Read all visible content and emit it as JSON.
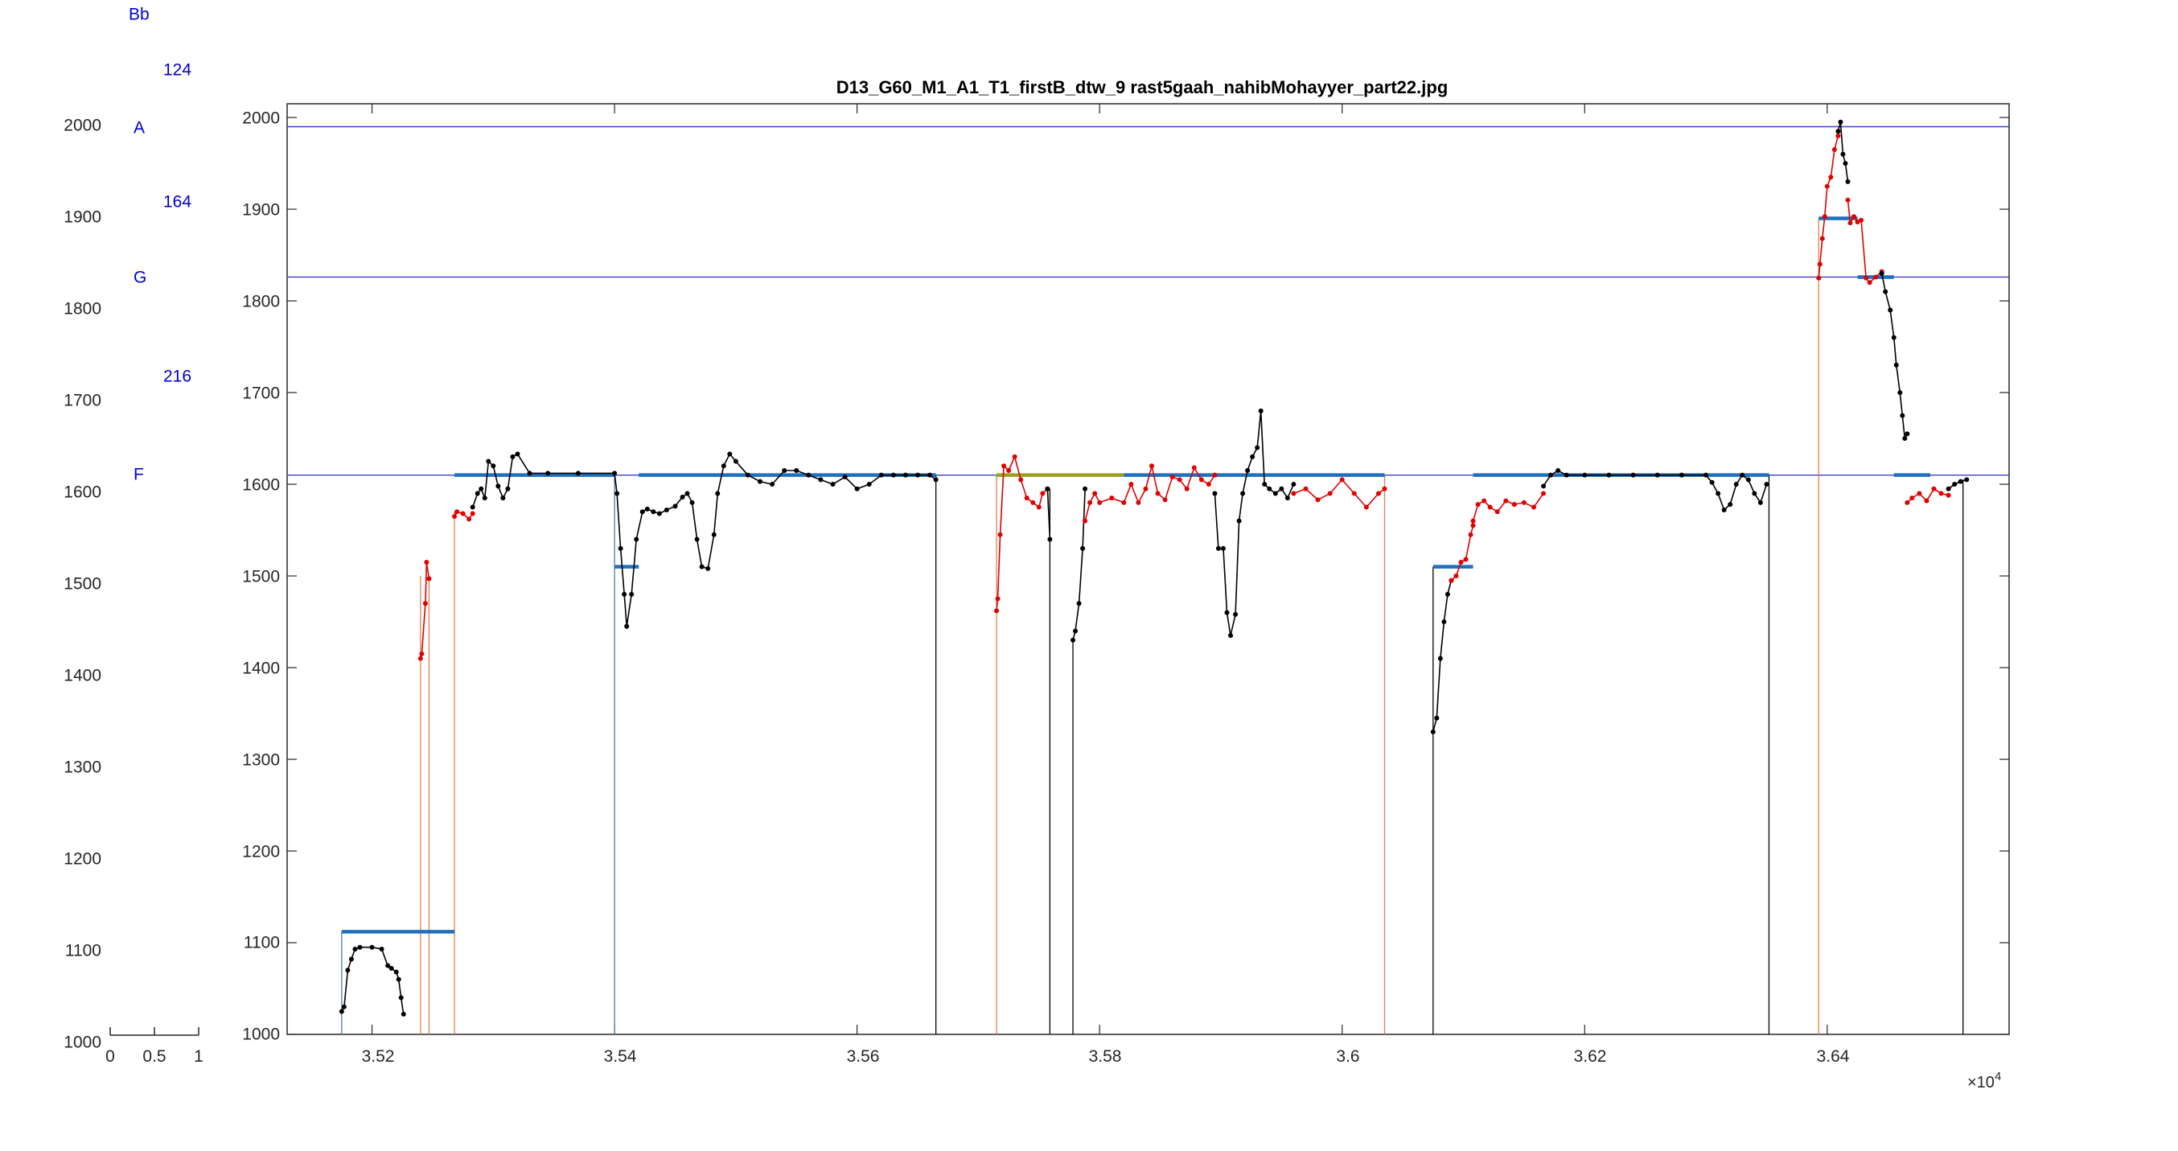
{
  "chart_data": [
    {
      "type": "line",
      "title": "",
      "xlim": [
        0,
        1
      ],
      "ylim": [
        1000,
        2000
      ],
      "xticks": [
        "0",
        "0.5",
        "1"
      ],
      "yticks": [
        "1000",
        "1100",
        "1200",
        "1300",
        "1400",
        "1500",
        "1600",
        "1700",
        "1800",
        "1900",
        "2000"
      ],
      "note_labels": [
        {
          "text": "Bb",
          "y": 2124
        },
        {
          "text": "124",
          "y": 2062
        },
        {
          "text": "A",
          "y": 1990
        },
        {
          "text": "164",
          "y": 1918
        },
        {
          "text": "G",
          "y": 1826
        },
        {
          "text": "216",
          "y": 1718
        },
        {
          "text": "F",
          "y": 1610
        }
      ]
    },
    {
      "type": "line",
      "title": "D13_G60_M1_A1_T1_firstB_dtw_9 rast5gaah_nahibMohayyer_part22.jpg",
      "xlim": [
        35130,
        36550
      ],
      "ylim": [
        1000,
        2015
      ],
      "xticks": [
        35200,
        35400,
        35600,
        35800,
        36000,
        36200,
        36400
      ],
      "xtick_labels": [
        "3.52",
        "3.54",
        "3.56",
        "3.58",
        "3.6",
        "3.62",
        "3.64"
      ],
      "x_exponent": "×10",
      "x_exponent_power": "4",
      "yticks": [
        "1000",
        "1100",
        "1200",
        "1300",
        "1400",
        "1500",
        "1600",
        "1700",
        "1800",
        "1900",
        "2000"
      ],
      "reference_lines": [
        1990,
        1826,
        1610
      ],
      "colors": {
        "reference": "#4040c0",
        "target": "#1f6fbf",
        "black": "#000000",
        "red": "#e00000",
        "olive": "#9aa020",
        "orange": "#e08050",
        "steel": "#4a7fa0"
      },
      "target_segments": [
        {
          "x": [
            35175,
            35268
          ],
          "y": 1112
        },
        {
          "x": [
            35268,
            35400
          ],
          "y": 1610
        },
        {
          "x": [
            35400,
            35420
          ],
          "y": 1510
        },
        {
          "x": [
            35420,
            35665
          ],
          "y": 1610
        },
        {
          "x": [
            35715,
            35820
          ],
          "y": 1610,
          "color": "olive"
        },
        {
          "x": [
            35820,
            36035
          ],
          "y": 1610
        },
        {
          "x": [
            36075,
            36108
          ],
          "y": 1510
        },
        {
          "x": [
            36108,
            36352
          ],
          "y": 1610
        },
        {
          "x": [
            36393,
            36425
          ],
          "y": 1890
        },
        {
          "x": [
            36425,
            36455
          ],
          "y": 1826
        },
        {
          "x": [
            36455,
            36485
          ],
          "y": 1610
        }
      ],
      "drop_lines": [
        {
          "x": 35175,
          "y": 1112,
          "color": "steel"
        },
        {
          "x": 35240,
          "y": 1500,
          "color": "orange"
        },
        {
          "x": 35247,
          "y": 1500,
          "color": "orange"
        },
        {
          "x": 35268,
          "y": 1570,
          "color": "orange"
        },
        {
          "x": 35400,
          "y": 1610,
          "color": "steel"
        },
        {
          "x": 35665,
          "y": 1610,
          "color": "black"
        },
        {
          "x": 35715,
          "y": 1610,
          "color": "orange"
        },
        {
          "x": 35759,
          "y": 1595,
          "color": "black"
        },
        {
          "x": 35778,
          "y": 1430,
          "color": "black"
        },
        {
          "x": 36035,
          "y": 1610,
          "color": "orange"
        },
        {
          "x": 36075,
          "y": 1510,
          "color": "black"
        },
        {
          "x": 36352,
          "y": 1610,
          "color": "black"
        },
        {
          "x": 36393,
          "y": 1890,
          "color": "orange"
        },
        {
          "x": 36512,
          "y": 1605,
          "color": "black"
        }
      ],
      "series": [
        {
          "color": "black",
          "x": [
            35175,
            35177,
            35180,
            35183,
            35186,
            35190,
            35200,
            35208,
            35213,
            35216,
            35220,
            35222,
            35224,
            35226
          ],
          "y": [
            1025,
            1030,
            1070,
            1082,
            1093,
            1095,
            1095,
            1093,
            1075,
            1072,
            1068,
            1060,
            1040,
            1022
          ]
        },
        {
          "color": "red",
          "x": [
            35240,
            35241,
            35244,
            35245,
            35247
          ],
          "y": [
            1410,
            1415,
            1470,
            1515,
            1497
          ]
        },
        {
          "color": "red",
          "x": [
            35268,
            35270,
            35275,
            35280,
            35283
          ],
          "y": [
            1565,
            1570,
            1568,
            1562,
            1568
          ]
        },
        {
          "color": "black",
          "x": [
            35283,
            35287,
            35290,
            35293,
            35296,
            35300,
            35304,
            35308,
            35312,
            35316,
            35320,
            35330,
            35345,
            35370,
            35400,
            35402,
            35405,
            35408,
            35410,
            35414,
            35418,
            35423,
            35427,
            35432,
            35437,
            35443,
            35450,
            35456,
            35460,
            35464,
            35468,
            35472,
            35477,
            35482,
            35485,
            35490,
            35495,
            35500,
            35510,
            35520,
            35530,
            35540,
            35550,
            35560,
            35570,
            35580,
            35590,
            35600,
            35610,
            35620,
            35630,
            35640,
            35650,
            35660,
            35665
          ],
          "y": [
            1575,
            1590,
            1595,
            1585,
            1625,
            1620,
            1598,
            1585,
            1595,
            1630,
            1633,
            1612,
            1612,
            1612,
            1612,
            1590,
            1530,
            1480,
            1445,
            1480,
            1540,
            1570,
            1573,
            1570,
            1568,
            1572,
            1576,
            1586,
            1590,
            1580,
            1540,
            1510,
            1508,
            1545,
            1590,
            1620,
            1633,
            1625,
            1610,
            1603,
            1600,
            1615,
            1615,
            1610,
            1605,
            1600,
            1608,
            1595,
            1600,
            1610,
            1610,
            1610,
            1610,
            1610,
            1605
          ]
        },
        {
          "color": "red",
          "x": [
            35715,
            35716,
            35718,
            35721,
            35725,
            35730,
            35735,
            35740,
            35745,
            35750,
            35753,
            35757
          ],
          "y": [
            1462,
            1475,
            1545,
            1620,
            1615,
            1630,
            1605,
            1585,
            1580,
            1575,
            1590,
            1595
          ]
        },
        {
          "color": "black",
          "x": [
            35757,
            35759
          ],
          "y": [
            1595,
            1540
          ]
        },
        {
          "color": "black",
          "x": [
            35778,
            35780,
            35783,
            35786,
            35788
          ],
          "y": [
            1430,
            1440,
            1470,
            1530,
            1595
          ]
        },
        {
          "color": "red",
          "x": [
            35788,
            35792,
            35796,
            35800,
            35810,
            35820,
            35826,
            35832,
            35838,
            35843,
            35848,
            35854,
            35860,
            35866,
            35872,
            35878,
            35884,
            35890,
            35895
          ],
          "y": [
            1560,
            1580,
            1590,
            1580,
            1585,
            1580,
            1600,
            1580,
            1595,
            1620,
            1590,
            1583,
            1608,
            1605,
            1595,
            1618,
            1605,
            1600,
            1610
          ]
        },
        {
          "color": "black",
          "x": [
            35895,
            35898,
            35902,
            35905,
            35908,
            35912,
            35915,
            35918,
            35922,
            35926,
            35930,
            35933,
            35936,
            35940,
            35945,
            35950,
            35955,
            35960
          ],
          "y": [
            1590,
            1530,
            1530,
            1460,
            1435,
            1458,
            1560,
            1590,
            1615,
            1630,
            1640,
            1680,
            1600,
            1595,
            1590,
            1595,
            1585,
            1600
          ]
        },
        {
          "color": "red",
          "x": [
            35960,
            35970,
            35980,
            35990,
            36000,
            36010,
            36020,
            36030,
            36035
          ],
          "y": [
            1590,
            1595,
            1583,
            1590,
            1605,
            1590,
            1575,
            1590,
            1595
          ]
        },
        {
          "color": "black",
          "x": [
            36075,
            36078,
            36081,
            36084,
            36087,
            36090
          ],
          "y": [
            1330,
            1345,
            1410,
            1450,
            1480,
            1495
          ]
        },
        {
          "color": "red",
          "x": [
            36090,
            36094,
            36098,
            36102,
            36106,
            36108
          ],
          "y": [
            1495,
            1500,
            1515,
            1518,
            1545,
            1555
          ]
        },
        {
          "color": "red",
          "x": [
            36108,
            36112,
            36117,
            36122,
            36128,
            36135,
            36142,
            36150,
            36158,
            36166
          ],
          "y": [
            1560,
            1578,
            1582,
            1575,
            1570,
            1582,
            1578,
            1580,
            1575,
            1590
          ]
        },
        {
          "color": "black",
          "x": [
            36166,
            36172,
            36178,
            36185,
            36200,
            36220,
            36240,
            36260,
            36280,
            36300,
            36305,
            36310,
            36315,
            36320,
            36325,
            36330,
            36335,
            36340,
            36345,
            36350
          ],
          "y": [
            1598,
            1610,
            1615,
            1610,
            1610,
            1610,
            1610,
            1610,
            1610,
            1610,
            1602,
            1590,
            1572,
            1578,
            1600,
            1610,
            1605,
            1590,
            1580,
            1600
          ]
        },
        {
          "color": "red",
          "x": [
            36393,
            36394,
            36396,
            36398,
            36400,
            36403,
            36406,
            36409
          ],
          "y": [
            1825,
            1840,
            1868,
            1892,
            1925,
            1935,
            1965,
            1980
          ]
        },
        {
          "color": "black",
          "x": [
            36409,
            36411,
            36413,
            36415,
            36417
          ],
          "y": [
            1985,
            1995,
            1960,
            1950,
            1930
          ]
        },
        {
          "color": "red",
          "x": [
            36417,
            36419,
            36422,
            36425,
            36428,
            36432,
            36435,
            36440,
            36445
          ],
          "y": [
            1910,
            1885,
            1892,
            1886,
            1888,
            1825,
            1820,
            1826,
            1832
          ]
        },
        {
          "color": "black",
          "x": [
            36445,
            36448,
            36452,
            36455,
            36457,
            36460,
            36462,
            36464,
            36466
          ],
          "y": [
            1830,
            1810,
            1790,
            1760,
            1730,
            1700,
            1675,
            1650,
            1655
          ]
        },
        {
          "color": "red",
          "x": [
            36466,
            36470,
            36476,
            36482,
            36488,
            36494,
            36500
          ],
          "y": [
            1580,
            1585,
            1590,
            1582,
            1595,
            1590,
            1588
          ]
        },
        {
          "color": "black",
          "x": [
            36500,
            36505,
            36510,
            36515
          ],
          "y": [
            1595,
            1600,
            1603,
            1605
          ]
        }
      ]
    }
  ]
}
